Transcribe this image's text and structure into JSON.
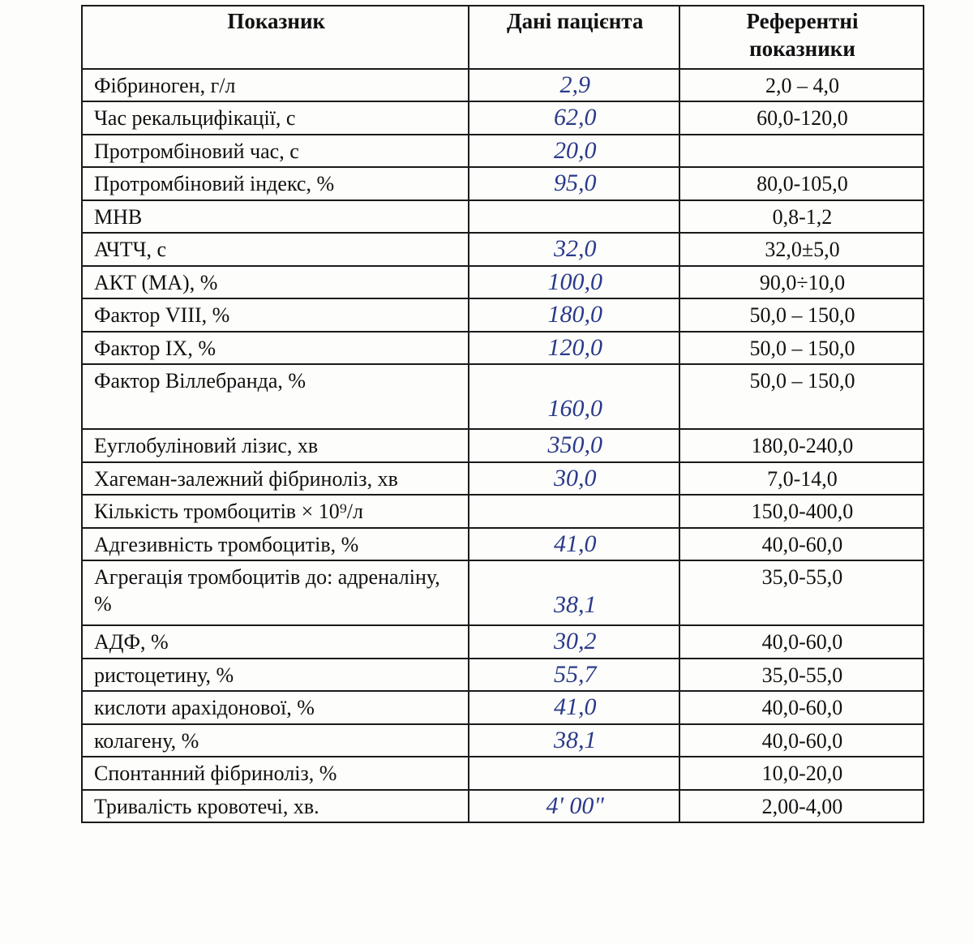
{
  "table": {
    "header": {
      "param": "Показник",
      "patient": "Дані пацієнта",
      "ref": "Референтні показники"
    },
    "colors": {
      "text": "#111111",
      "handwriting": "#2a3a8a",
      "border": "#1a1a1a",
      "background": "#fdfdfb"
    },
    "fonts": {
      "body_family": "Times New Roman",
      "body_size_pt": 20,
      "header_weight": "bold",
      "handwriting_family": "Segoe Script",
      "handwriting_style": "italic",
      "handwriting_size_pt": 22
    },
    "column_widths_pct": [
      46,
      25,
      29
    ],
    "rows": [
      {
        "param": "Фібриноген, г/л",
        "patient": "2,9",
        "ref": "2,0 – 4,0"
      },
      {
        "param": "Час рекальцифікації, с",
        "patient": "62,0",
        "ref": "60,0-120,0"
      },
      {
        "param": "Протромбіновий час, с",
        "patient": "20,0",
        "ref": ""
      },
      {
        "param": "Протромбіновий індекс, %",
        "patient": "95,0",
        "ref": "80,0-105,0"
      },
      {
        "param": "МНВ",
        "patient": "",
        "ref": "0,8-1,2"
      },
      {
        "param": "АЧТЧ, с",
        "patient": "32,0",
        "ref": "32,0±5,0"
      },
      {
        "param": "АКТ (МА), %",
        "patient": "100,0",
        "ref": "90,0÷10,0"
      },
      {
        "param": "Фактор VIII, %",
        "patient": "180,0",
        "ref": "50,0 – 150,0"
      },
      {
        "param": "Фактор IX, %",
        "patient": "120,0",
        "ref": "50,0 – 150,0"
      },
      {
        "param": "Фактор Віллебранда, %",
        "patient": "160,0",
        "ref": "50,0 – 150,0",
        "tall": true
      },
      {
        "param": "Еуглобуліновий лізис, хв",
        "patient": "350,0",
        "ref": "180,0-240,0"
      },
      {
        "param": "Хагеман-залежний фібриноліз, хв",
        "patient": "30,0",
        "ref": "7,0-14,0"
      },
      {
        "param": "Кількість тромбоцитів × 10⁹/л",
        "patient": "",
        "ref": "150,0-400,0"
      },
      {
        "param": "Адгезивність тромбоцитів, %",
        "patient": "41,0",
        "ref": "40,0-60,0"
      },
      {
        "param": "Агрегація тромбоцитів до: адреналіну, %",
        "patient": "38,1",
        "ref": "35,0-55,0",
        "tall": true
      },
      {
        "param": "АДФ, %",
        "patient": "30,2",
        "ref": "40,0-60,0"
      },
      {
        "param": "ристоцетину, %",
        "patient": "55,7",
        "ref": "35,0-55,0"
      },
      {
        "param": "кислоти арахідонової, %",
        "patient": "41,0",
        "ref": "40,0-60,0"
      },
      {
        "param": "колагену, %",
        "patient": "38,1",
        "ref": "40,0-60,0"
      },
      {
        "param": "Спонтанний фібриноліз, %",
        "patient": "",
        "ref": "10,0-20,0"
      },
      {
        "param": "Тривалість кровотечі, хв.",
        "patient": "4' 00\"",
        "ref": "2,00-4,00"
      }
    ]
  }
}
